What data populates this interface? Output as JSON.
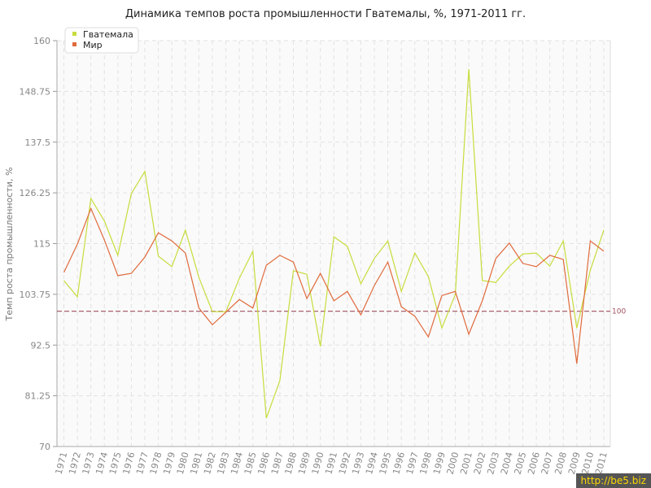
{
  "chart_data": {
    "type": "line",
    "title": "Динамика темпов роста промышленности Гватемалы, %, 1971-2011 гг.",
    "xlabel": "",
    "ylabel": "Темп роста промышленности, %",
    "ylim": [
      70,
      160
    ],
    "yticks": [
      "70",
      "81.25",
      "92.5",
      "103.75",
      "115",
      "126.25",
      "137.5",
      "148.75",
      "160"
    ],
    "grid": true,
    "legend_position": "top-left",
    "reference_line": {
      "value": 100,
      "label": "100",
      "color": "#a05060"
    },
    "x": [
      1971,
      1972,
      1973,
      1974,
      1975,
      1976,
      1977,
      1978,
      1979,
      1980,
      1981,
      1982,
      1983,
      1984,
      1985,
      1986,
      1987,
      1988,
      1989,
      1990,
      1991,
      1992,
      1993,
      1994,
      1995,
      1996,
      1997,
      1998,
      1999,
      2000,
      2001,
      2002,
      2003,
      2004,
      2005,
      2006,
      2007,
      2008,
      2009,
      2010,
      2011
    ],
    "series": [
      {
        "name": "Гватемала",
        "color": "#c8dc3c",
        "values": [
          106.8,
          103.2,
          125.0,
          120.0,
          112.4,
          126.1,
          131.0,
          112.2,
          109.9,
          118.0,
          107.5,
          99.9,
          99.9,
          107.3,
          113.3,
          76.3,
          84.6,
          109.0,
          108.2,
          92.2,
          116.5,
          114.4,
          106.1,
          111.7,
          115.6,
          104.4,
          112.9,
          107.7,
          96.3,
          103.7,
          153.7,
          106.8,
          106.4,
          110.0,
          112.7,
          112.9,
          110.0,
          115.6,
          96.3,
          109.1,
          118.0
        ]
      },
      {
        "name": "Мир",
        "color": "#e06a3c",
        "values": [
          108.6,
          114.9,
          122.8,
          115.8,
          107.9,
          108.4,
          112.0,
          117.4,
          115.6,
          112.9,
          100.7,
          97.0,
          99.8,
          102.6,
          100.7,
          110.2,
          112.4,
          110.9,
          102.8,
          108.4,
          102.3,
          104.4,
          99.2,
          105.7,
          110.9,
          101.0,
          98.9,
          94.3,
          103.5,
          104.4,
          94.9,
          102.3,
          111.7,
          115.1,
          110.6,
          109.9,
          112.4,
          111.5,
          88.4,
          115.6,
          113.3
        ]
      }
    ]
  },
  "watermark": "http://be5.biz"
}
